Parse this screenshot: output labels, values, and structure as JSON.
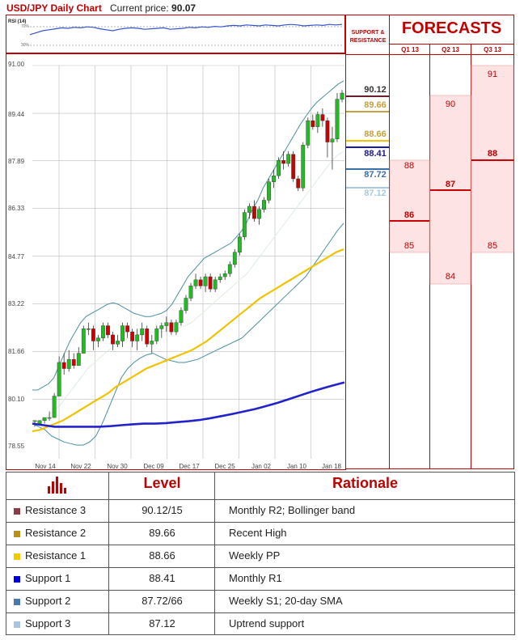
{
  "header": {
    "title": "USD/JPY Daily Chart",
    "price_label": "Current price:",
    "price_value": "90.07"
  },
  "rsi": {
    "label": "RSI (14)",
    "ticks": [
      "70%",
      "30%"
    ]
  },
  "chart_data": {
    "type": "candlestick",
    "y_ticks": [
      "91.00",
      "89.44",
      "87.89",
      "86.33",
      "84.77",
      "83.22",
      "81.66",
      "80.10",
      "78.55"
    ],
    "ylim": [
      78.55,
      91.0
    ],
    "x_ticks": [
      "Nov 14",
      "Nov 22",
      "Nov 30",
      "Dec 09",
      "Dec 17",
      "Dec 25",
      "Jan 02",
      "Jan 10",
      "Jan 18"
    ],
    "series": [
      {
        "name": "Candles",
        "color_up": "#22bb22",
        "color_down": "#cc0000",
        "values": [
          [
            79.4,
            79.4,
            79.2,
            79.4
          ],
          [
            79.3,
            79.4,
            79.3,
            79.4
          ],
          [
            79.4,
            79.5,
            79.3,
            79.5
          ],
          [
            79.5,
            79.7,
            79.4,
            79.5
          ],
          [
            79.5,
            80.3,
            79.5,
            80.2
          ],
          [
            80.2,
            81.5,
            80.2,
            81.3
          ],
          [
            81.3,
            81.6,
            80.9,
            81.1
          ],
          [
            81.1,
            81.7,
            81.0,
            81.4
          ],
          [
            81.4,
            81.6,
            81.1,
            81.2
          ],
          [
            81.2,
            81.8,
            81.2,
            81.6
          ],
          [
            81.6,
            82.5,
            81.6,
            82.4
          ],
          [
            82.4,
            82.6,
            82.2,
            82.4
          ],
          [
            82.4,
            82.5,
            81.7,
            82.0
          ],
          [
            82.0,
            82.2,
            81.8,
            82.1
          ],
          [
            82.1,
            82.6,
            82.0,
            82.5
          ],
          [
            82.5,
            82.6,
            82.1,
            82.2
          ],
          [
            82.2,
            82.3,
            81.7,
            81.9
          ],
          [
            81.9,
            82.2,
            81.8,
            82.0
          ],
          [
            82.0,
            82.6,
            81.8,
            82.5
          ],
          [
            82.5,
            82.6,
            82.1,
            82.3
          ],
          [
            82.3,
            82.4,
            81.8,
            82.0
          ],
          [
            82.0,
            82.4,
            81.7,
            82.2
          ],
          [
            82.2,
            82.6,
            82.0,
            82.4
          ],
          [
            82.4,
            82.5,
            81.8,
            81.9
          ],
          [
            81.9,
            82.2,
            81.6,
            82.0
          ],
          [
            82.0,
            82.5,
            81.9,
            82.4
          ],
          [
            82.4,
            82.6,
            82.1,
            82.5
          ],
          [
            82.5,
            82.8,
            82.3,
            82.6
          ],
          [
            82.6,
            82.7,
            82.2,
            82.3
          ],
          [
            82.3,
            82.7,
            82.2,
            82.6
          ],
          [
            82.6,
            83.1,
            82.5,
            83.0
          ],
          [
            83.0,
            83.5,
            82.9,
            83.4
          ],
          [
            83.4,
            83.9,
            83.3,
            83.8
          ],
          [
            83.8,
            84.2,
            83.7,
            84.0
          ],
          [
            84.0,
            84.1,
            83.7,
            83.8
          ],
          [
            83.8,
            84.2,
            83.6,
            84.1
          ],
          [
            84.1,
            84.2,
            83.6,
            83.7
          ],
          [
            83.7,
            84.1,
            83.6,
            84.0
          ],
          [
            84.0,
            84.2,
            83.9,
            84.1
          ],
          [
            84.1,
            84.3,
            84.0,
            84.2
          ],
          [
            84.2,
            84.6,
            84.1,
            84.5
          ],
          [
            84.5,
            85.0,
            84.4,
            84.9
          ],
          [
            84.9,
            85.5,
            84.8,
            85.4
          ],
          [
            85.4,
            86.3,
            85.3,
            86.2
          ],
          [
            86.2,
            86.5,
            86.0,
            86.4
          ],
          [
            86.4,
            86.6,
            85.9,
            86.0
          ],
          [
            86.0,
            86.4,
            85.8,
            86.3
          ],
          [
            86.3,
            86.7,
            86.2,
            86.6
          ],
          [
            86.6,
            87.3,
            86.5,
            87.2
          ],
          [
            87.2,
            87.6,
            87.0,
            87.4
          ],
          [
            87.4,
            88.0,
            87.3,
            87.9
          ],
          [
            87.9,
            88.2,
            87.6,
            87.8
          ],
          [
            87.8,
            88.2,
            87.7,
            88.1
          ],
          [
            88.1,
            88.2,
            87.2,
            87.3
          ],
          [
            87.3,
            87.4,
            86.9,
            87.0
          ],
          [
            87.0,
            88.5,
            86.9,
            88.4
          ],
          [
            88.4,
            89.3,
            88.3,
            89.2
          ],
          [
            89.2,
            89.4,
            88.9,
            89.0
          ],
          [
            89.0,
            89.5,
            88.8,
            89.4
          ],
          [
            89.4,
            89.6,
            89.0,
            89.2
          ],
          [
            89.2,
            89.3,
            88.0,
            88.5
          ],
          [
            88.5,
            89.0,
            87.6,
            88.6
          ],
          [
            88.6,
            90.1,
            88.5,
            89.9
          ],
          [
            89.9,
            90.2,
            89.8,
            90.1
          ]
        ]
      },
      {
        "name": "Bollinger upper",
        "color": "#4a8fa0",
        "values": [
          80.4,
          80.4,
          80.5,
          80.6,
          80.8,
          81.2,
          81.6,
          82.0,
          82.3,
          82.6,
          82.8,
          82.9,
          83.0,
          83.1,
          83.2,
          83.25,
          83.2,
          83.1,
          83.0,
          82.9,
          82.85,
          82.8,
          82.8,
          82.85,
          82.9,
          83.0,
          83.2,
          83.5,
          83.8,
          84.1,
          84.3,
          84.5,
          84.7,
          84.8,
          84.9,
          85.0,
          85.1,
          85.2,
          85.4,
          85.6,
          85.9,
          86.3,
          86.6,
          87.0,
          87.3,
          87.6,
          87.9,
          88.2,
          88.5,
          88.8,
          89.1,
          89.35,
          89.6,
          89.8,
          89.95,
          90.1,
          90.25,
          90.4,
          90.5
        ]
      },
      {
        "name": "Bollinger lower",
        "color": "#4a8fa0",
        "values": [
          79.3,
          79.2,
          79.1,
          78.9,
          78.8,
          78.7,
          78.65,
          78.6,
          78.6,
          78.7,
          78.9,
          79.3,
          79.8,
          80.3,
          80.8,
          81.1,
          81.3,
          81.45,
          81.55,
          81.6,
          81.5,
          81.4,
          81.35,
          81.3,
          81.3,
          81.35,
          81.4,
          81.5,
          81.6,
          81.7,
          81.8,
          81.9,
          82.0,
          82.1,
          82.3,
          82.5,
          82.7,
          82.9,
          83.1,
          83.3,
          83.5,
          83.7,
          83.9,
          84.1,
          84.4,
          84.7,
          85.0,
          85.3,
          85.6,
          85.85
        ]
      },
      {
        "name": "20-day SMA",
        "color": "#ddeedd",
        "values": [
          79.3,
          79.4,
          79.5,
          79.7,
          79.9,
          80.2,
          80.5,
          80.8,
          81.1,
          81.3,
          81.5,
          81.7,
          81.85,
          82.0,
          82.1,
          82.2,
          82.25,
          82.3,
          82.3,
          82.3,
          82.35,
          82.4,
          82.5,
          82.6,
          82.8,
          83.0,
          83.2,
          83.4,
          83.6,
          83.8,
          84.0,
          84.2,
          84.5,
          84.8,
          85.1,
          85.4,
          85.7,
          86.0,
          86.3,
          86.6,
          86.9,
          87.2,
          87.5,
          87.8,
          88.05,
          88.2
        ]
      },
      {
        "name": "50-day SMA",
        "color": "#f2c200",
        "values": [
          79.05,
          79.1,
          79.2,
          79.3,
          79.4,
          79.55,
          79.7,
          79.85,
          80.0,
          80.15,
          80.3,
          80.5,
          80.65,
          80.8,
          80.95,
          81.1,
          81.2,
          81.3,
          81.4,
          81.5,
          81.6,
          81.7,
          81.85,
          82.0,
          82.2,
          82.4,
          82.6,
          82.8,
          83.0,
          83.2,
          83.4,
          83.55,
          83.7,
          83.85,
          84.0,
          84.15,
          84.3,
          84.45,
          84.6,
          84.75,
          84.9,
          85.0
        ]
      },
      {
        "name": "200-day SMA",
        "color": "#2222cc",
        "values": [
          79.3,
          79.25,
          79.2,
          79.2,
          79.2,
          79.2,
          79.2,
          79.22,
          79.25,
          79.28,
          79.3,
          79.3,
          79.32,
          79.35,
          79.38,
          79.42,
          79.48,
          79.55,
          79.62,
          79.7,
          79.78,
          79.88,
          79.98,
          80.1,
          80.22,
          80.34,
          80.45,
          80.55,
          80.65
        ]
      }
    ],
    "rsi_values": [
      52,
      56,
      60,
      62,
      64,
      66,
      65,
      67,
      66,
      68,
      67,
      64,
      62,
      60,
      63,
      65,
      66,
      65,
      63,
      64,
      65,
      66,
      63,
      64,
      65,
      67,
      66,
      68,
      67,
      69,
      68,
      70,
      71,
      70,
      72,
      71,
      70,
      72,
      71,
      70,
      72,
      73,
      72,
      70,
      71,
      72,
      71,
      73,
      72,
      73
    ]
  },
  "levels_panel": {
    "header": "SUPPORT & RESISTANCE",
    "items": [
      {
        "value": "90.12",
        "color": "#6b2030"
      },
      {
        "value": "89.66",
        "color": "#c8a040"
      },
      {
        "value": "88.66",
        "color": "#f2c200"
      },
      {
        "value": "88.41",
        "color": "#1a1aaa"
      },
      {
        "value": "87.72",
        "color": "#3a70a8"
      },
      {
        "value": "87.12",
        "color": "#a8c8e0"
      }
    ]
  },
  "forecasts": {
    "title": "FORECASTS",
    "quarters": [
      {
        "label": "Q1 13",
        "low": "85",
        "mid": "86",
        "high": "88"
      },
      {
        "label": "Q2 13",
        "low": "84",
        "mid": "87",
        "high": "90"
      },
      {
        "label": "Q3 13",
        "low": "85",
        "mid": "88",
        "high": "91"
      }
    ]
  },
  "table": {
    "headers": {
      "level": "Level",
      "rationale": "Rationale"
    },
    "icon": "bar-chart-icon",
    "rows": [
      {
        "name": "Resistance 3",
        "level": "90.12/15",
        "rationale": "Monthly R2; Bollinger band",
        "color": "#8b3a4a"
      },
      {
        "name": "Resistance 2",
        "level": "89.66",
        "rationale": "Recent High",
        "color": "#b8901a"
      },
      {
        "name": "Resistance 1",
        "level": "88.66",
        "rationale": "Weekly PP",
        "color": "#f5c800"
      },
      {
        "name": "Support 1",
        "level": "88.41",
        "rationale": "Monthly R1",
        "color": "#0000dd"
      },
      {
        "name": "Support 2",
        "level": "87.72/66",
        "rationale": "Weekly S1; 20-day SMA",
        "color": "#4a7ab0"
      },
      {
        "name": "Support 3",
        "level": "87.12",
        "rationale": "Uptrend support",
        "color": "#a8c4e0"
      }
    ]
  }
}
